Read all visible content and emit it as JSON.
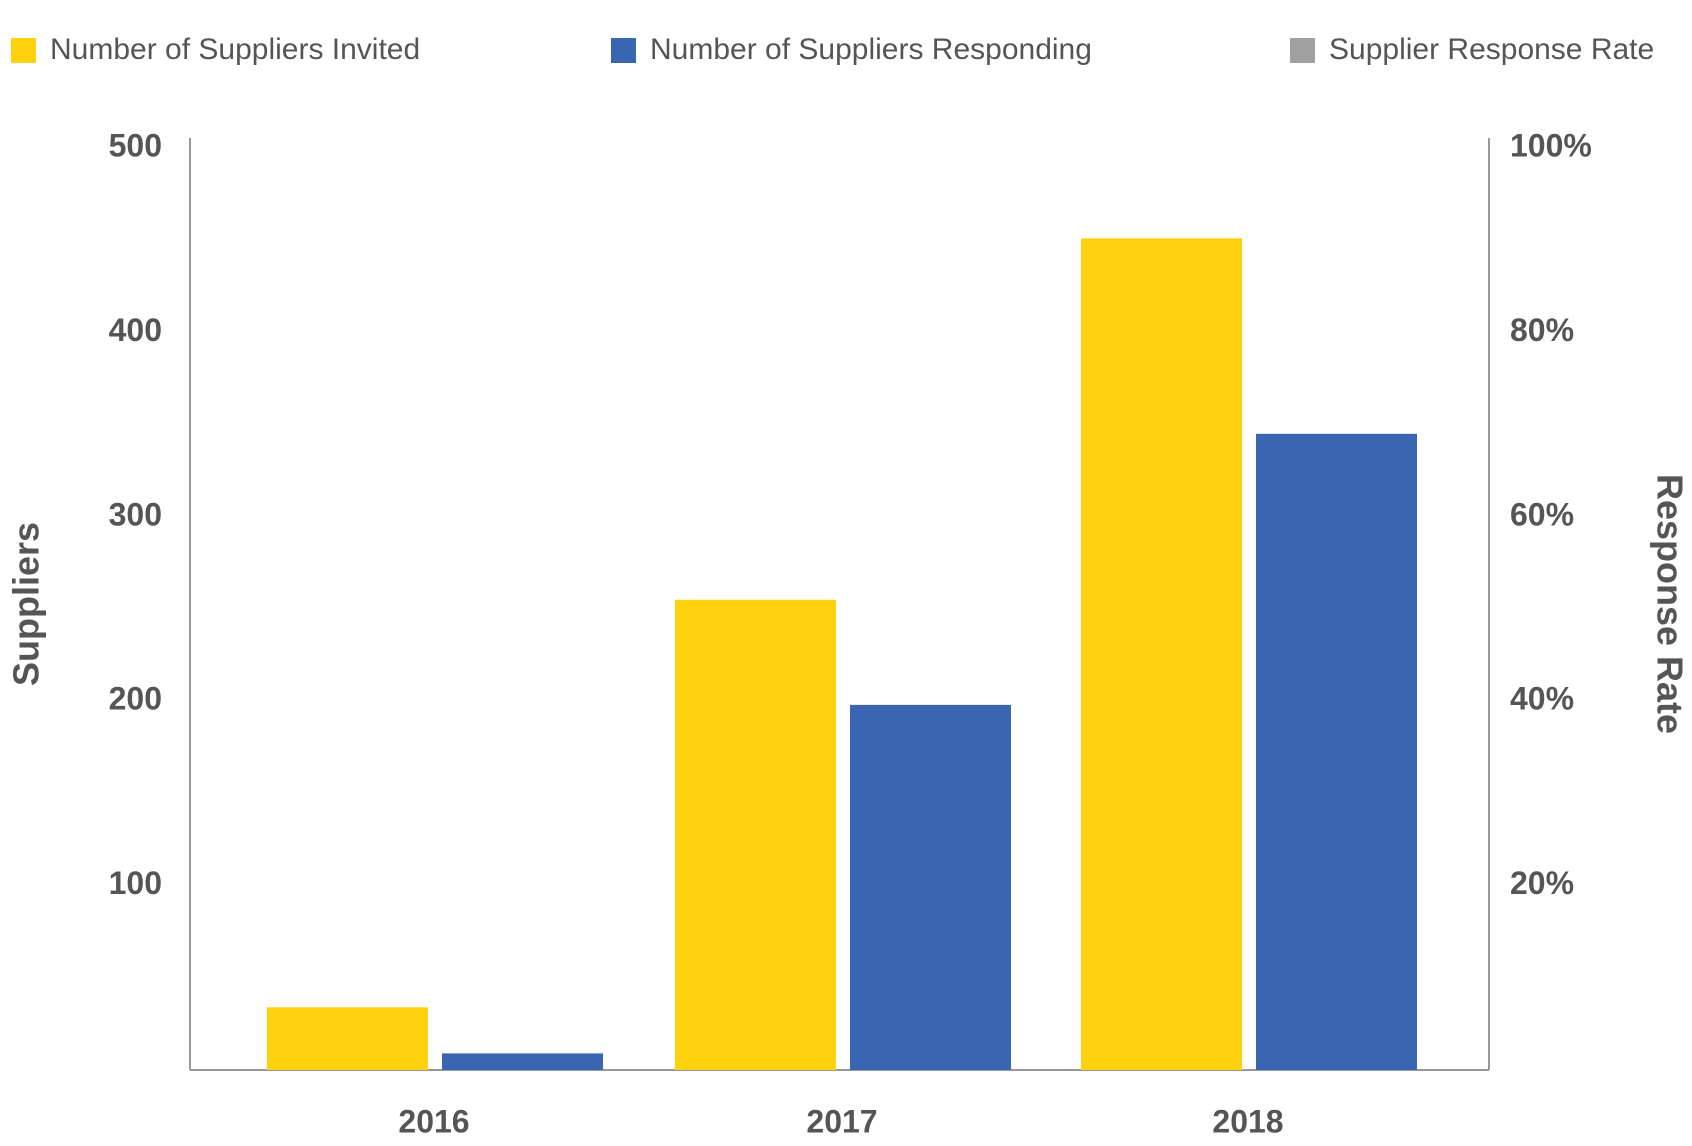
{
  "chart_data": {
    "type": "bar",
    "categories": [
      "2016",
      "2017",
      "2018"
    ],
    "series": [
      {
        "name": "Number of Suppliers Invited",
        "color": "#fdd10e",
        "values": [
          34,
          255,
          451
        ]
      },
      {
        "name": "Number of Suppliers Responding",
        "color": "#3a65b0",
        "values": [
          9,
          198,
          345
        ]
      },
      {
        "name": "Supplier Response Rate",
        "color": "#a0a0a0",
        "axis": "y2",
        "values": [
          null,
          null,
          null
        ]
      }
    ],
    "ylabel": "Suppliers",
    "y2label": "Response Rate",
    "ylim": [
      0,
      500
    ],
    "yticks": [
      100,
      200,
      300,
      400,
      500
    ],
    "y2lim": [
      0,
      100
    ],
    "y2ticks": [
      {
        "value": 20,
        "label": "20%"
      },
      {
        "value": 40,
        "label": "40%"
      },
      {
        "value": 60,
        "label": "60%"
      },
      {
        "value": 80,
        "label": "80%"
      },
      {
        "value": 100,
        "label": "100%"
      }
    ],
    "grid": false,
    "legend": "top"
  }
}
